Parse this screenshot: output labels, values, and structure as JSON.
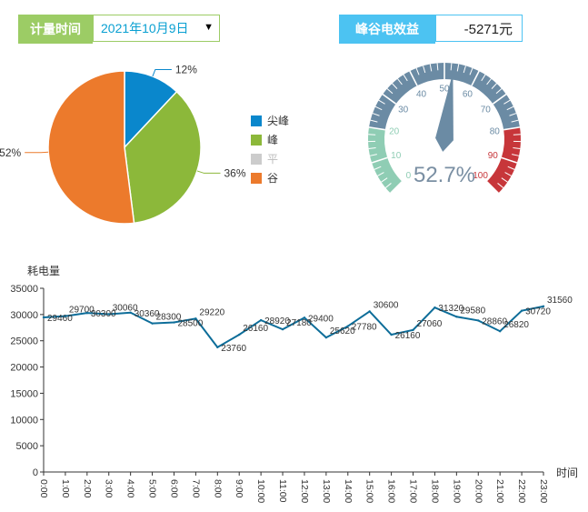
{
  "controls": {
    "period_label": "计量时间",
    "date_value": "2021年10月9日",
    "date_arrow": "▼",
    "benefit_label": "峰谷电效益",
    "benefit_value": "-5271元"
  },
  "pie": {
    "slices": [
      {
        "name": "尖峰",
        "value": 12,
        "label": "12%",
        "color": "#0a87cc"
      },
      {
        "name": "峰",
        "value": 36,
        "label": "36%",
        "color": "#8cb83a"
      },
      {
        "name": "平",
        "value": 0,
        "label": "",
        "color": "#cccccc"
      },
      {
        "name": "谷",
        "value": 52,
        "label": "52%",
        "color": "#ec7a2c"
      }
    ]
  },
  "gauge": {
    "value": 52.7,
    "display": "52.7%",
    "min": 0,
    "max": 100,
    "ticks": [
      "0",
      "10",
      "20",
      "30",
      "40",
      "50",
      "60",
      "70",
      "80",
      "90",
      "100"
    ],
    "band_colors": {
      "low": "#8fcdb4",
      "mid": "#6b8ba4",
      "high": "#c7363a"
    },
    "text_color": "#7a8fa3"
  },
  "chart_data": {
    "type": "line",
    "ylabel": "耗电量",
    "xlabel": "时间",
    "ylim": [
      0,
      35000
    ],
    "yticks": [
      "0",
      "5000",
      "10000",
      "15000",
      "20000",
      "25000",
      "30000",
      "35000"
    ],
    "x": [
      "0:00",
      "1:00",
      "2:00",
      "3:00",
      "4:00",
      "5:00",
      "6:00",
      "7:00",
      "8:00",
      "9:00",
      "10:00",
      "11:00",
      "12:00",
      "13:00",
      "14:00",
      "15:00",
      "16:00",
      "17:00",
      "18:00",
      "19:00",
      "20:00",
      "21:00",
      "22:00",
      "23:00"
    ],
    "values": [
      29460,
      29700,
      30300,
      30060,
      30360,
      28300,
      28500,
      29220,
      23760,
      26160,
      28920,
      27180,
      29400,
      25620,
      27780,
      30600,
      26160,
      27060,
      31320,
      29580,
      28860,
      26820,
      30720,
      31560
    ],
    "labels": [
      "29460",
      "29700",
      "30300",
      "30060",
      "30360",
      "28300",
      "28500",
      "29220",
      "23760",
      "26160",
      "28920",
      "27180",
      "29400",
      "25620",
      "27780",
      "30600",
      "26160",
      "27060",
      "31320",
      "29580",
      "28860",
      "26820",
      "30720",
      "31560"
    ],
    "color": "#0d6d99"
  }
}
